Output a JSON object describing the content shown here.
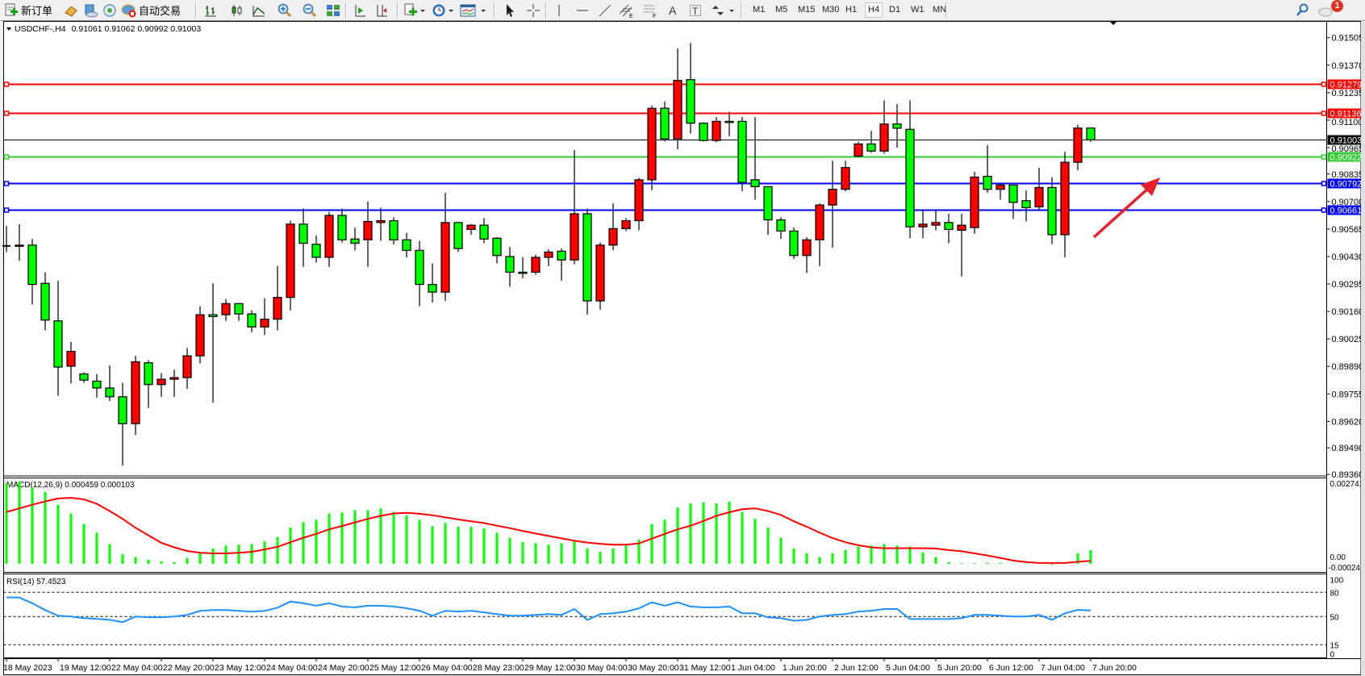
{
  "toolbar": {
    "new_order_label": "新订单",
    "auto_trade_label": "自动交易",
    "timeframes": [
      "M1",
      "M5",
      "M15",
      "M30",
      "H1",
      "H4",
      "D1",
      "W1",
      "MN"
    ],
    "active_timeframe": "H4",
    "notification_count": "1",
    "icons": [
      "new-order-icon",
      "market-watch-icon",
      "navigator-icon",
      "signals-icon",
      "auto-trading-icon",
      "bar-chart-icon",
      "candlestick-icon",
      "line-chart-icon",
      "zoom-in-icon",
      "zoom-out-icon",
      "tile-windows-icon",
      "autoscroll-icon",
      "chart-shift-icon",
      "indicators-icon",
      "periods-icon",
      "templates-icon",
      "cursor-icon",
      "crosshair-icon",
      "vertical-line-icon",
      "horizontal-line-icon",
      "trendline-icon",
      "equidistant-channel-icon",
      "fibonacci-icon",
      "text-icon",
      "text-label-icon",
      "arrows-icon",
      "search-icon",
      "chat-icon"
    ]
  },
  "chart": {
    "symbol_line": "USDCHF-,H4",
    "ohlc_line": "0.91061 0.91062 0.90992 0.91003",
    "macd_label": "MACD(12,26,9) 0.000459 0.000103",
    "rsi_label": "RSI(14) 57.4523"
  },
  "chart_data": {
    "type": "candlestick",
    "symbol": "USDCHF-",
    "timeframe": "H4",
    "colors": {
      "bull": "#ff0000",
      "bear": "#00ff00",
      "outline": "#000000"
    },
    "price_axis": {
      "ylim": [
        0.8936,
        0.91505
      ],
      "tick_labels": [
        "0.91505",
        "0.91370",
        "0.91235",
        "0.91100",
        "0.90965",
        "0.90835",
        "0.90700",
        "0.90565",
        "0.90430",
        "0.90295",
        "0.90160",
        "0.90025",
        "0.89890",
        "0.89755",
        "0.89620",
        "0.89490",
        "0.89360"
      ]
    },
    "time_labels": [
      "18 May 2023",
      "19 May 12:00",
      "22 May 04:00",
      "22 May 20:00",
      "23 May 12:00",
      "24 May 04:00",
      "24 May 20:00",
      "25 May 12:00",
      "26 May 04:00",
      "28 May 23:00",
      "29 May 12:00",
      "30 May 04:00",
      "30 May 20:00",
      "31 May 12:00",
      "1 Jun 04:00",
      "1 Jun 20:00",
      "2 Jun 12:00",
      "5 Jun 04:00",
      "5 Jun 20:00",
      "6 Jun 12:00",
      "7 Jun 04:00",
      "7 Jun 20:00"
    ],
    "ohlc": [
      [
        0.90482,
        0.9058,
        0.90452,
        0.90482
      ],
      [
        0.90482,
        0.90589,
        0.90409,
        0.90486
      ],
      [
        0.90486,
        0.90516,
        0.90195,
        0.90293
      ],
      [
        0.90298,
        0.90353,
        0.90067,
        0.90118
      ],
      [
        0.90114,
        0.90311,
        0.89746,
        0.89887
      ],
      [
        0.89891,
        0.90011,
        0.89806,
        0.89964
      ],
      [
        0.89853,
        0.89861,
        0.8981,
        0.89823
      ],
      [
        0.89818,
        0.89853,
        0.89737,
        0.89784
      ],
      [
        0.89784,
        0.89895,
        0.8972,
        0.89741
      ],
      [
        0.89741,
        0.8981,
        0.89403,
        0.89609
      ],
      [
        0.89609,
        0.89942,
        0.89553,
        0.89913
      ],
      [
        0.89908,
        0.89921,
        0.89686,
        0.89801
      ],
      [
        0.89801,
        0.89857,
        0.89741,
        0.89827
      ],
      [
        0.89827,
        0.89874,
        0.89741,
        0.89835
      ],
      [
        0.89835,
        0.89981,
        0.8978,
        0.89942
      ],
      [
        0.89942,
        0.90186,
        0.89904,
        0.90144
      ],
      [
        0.90144,
        0.90298,
        0.89711,
        0.90135
      ],
      [
        0.90144,
        0.90221,
        0.90114,
        0.90199
      ],
      [
        0.90199,
        0.90199,
        0.90114,
        0.90148
      ],
      [
        0.90148,
        0.90165,
        0.90058,
        0.90084
      ],
      [
        0.90084,
        0.90225,
        0.90045,
        0.90122
      ],
      [
        0.90122,
        0.90383,
        0.90067,
        0.90229
      ],
      [
        0.90229,
        0.90606,
        0.90165,
        0.90589
      ],
      [
        0.90589,
        0.90666,
        0.90379,
        0.90495
      ],
      [
        0.9049,
        0.90533,
        0.904,
        0.90426
      ],
      [
        0.90426,
        0.90649,
        0.90379,
        0.90632
      ],
      [
        0.90632,
        0.90666,
        0.90499,
        0.90512
      ],
      [
        0.90516,
        0.90572,
        0.9046,
        0.90495
      ],
      [
        0.90512,
        0.907,
        0.90379,
        0.90602
      ],
      [
        0.90597,
        0.9067,
        0.90507,
        0.90606
      ],
      [
        0.90606,
        0.90623,
        0.9049,
        0.90512
      ],
      [
        0.90512,
        0.90546,
        0.90426,
        0.9046
      ],
      [
        0.9046,
        0.90507,
        0.90186,
        0.90293
      ],
      [
        0.90293,
        0.90396,
        0.90204,
        0.90255
      ],
      [
        0.90255,
        0.90743,
        0.90212,
        0.90597
      ],
      [
        0.90597,
        0.90597,
        0.90452,
        0.90469
      ],
      [
        0.90563,
        0.90589,
        0.90537,
        0.90584
      ],
      [
        0.90584,
        0.90619,
        0.90495,
        0.90516
      ],
      [
        0.9052,
        0.90525,
        0.90396,
        0.90435
      ],
      [
        0.9043,
        0.90477,
        0.90281,
        0.90353
      ],
      [
        0.90353,
        0.90426,
        0.90323,
        0.90349
      ],
      [
        0.90353,
        0.90439,
        0.90341,
        0.90426
      ],
      [
        0.90426,
        0.90465,
        0.90383,
        0.90452
      ],
      [
        0.90456,
        0.90469,
        0.90311,
        0.90413
      ],
      [
        0.90413,
        0.90953,
        0.90392,
        0.9064
      ],
      [
        0.9064,
        0.90666,
        0.90144,
        0.90212
      ],
      [
        0.90212,
        0.90499,
        0.90169,
        0.90486
      ],
      [
        0.90486,
        0.90691,
        0.9046,
        0.90567
      ],
      [
        0.90567,
        0.90619,
        0.90555,
        0.90606
      ],
      [
        0.90606,
        0.90816,
        0.90559,
        0.90807
      ],
      [
        0.90807,
        0.91171,
        0.90756,
        0.91158
      ],
      [
        0.91158,
        0.91192,
        0.90995,
        0.91008
      ],
      [
        0.91008,
        0.91453,
        0.90957,
        0.91295
      ],
      [
        0.91299,
        0.91479,
        0.91034,
        0.91085
      ],
      [
        0.91085,
        0.9109,
        0.90995,
        0.91
      ],
      [
        0.91,
        0.91115,
        0.90991,
        0.91094
      ],
      [
        0.91094,
        0.91141,
        0.91021,
        0.9109
      ],
      [
        0.91094,
        0.91115,
        0.90751,
        0.90794
      ],
      [
        0.90807,
        0.91115,
        0.90709,
        0.90773
      ],
      [
        0.90773,
        0.90773,
        0.90537,
        0.9061
      ],
      [
        0.9061,
        0.90623,
        0.90516,
        0.90555
      ],
      [
        0.90555,
        0.90572,
        0.90418,
        0.90435
      ],
      [
        0.90435,
        0.90525,
        0.90349,
        0.90512
      ],
      [
        0.90512,
        0.90691,
        0.90383,
        0.90683
      ],
      [
        0.90683,
        0.90901,
        0.90473,
        0.9076
      ],
      [
        0.9076,
        0.90901,
        0.90751,
        0.90867
      ],
      [
        0.90923,
        0.90995,
        0.90918,
        0.90983
      ],
      [
        0.90983,
        0.91047,
        0.9094,
        0.90948
      ],
      [
        0.90948,
        0.91197,
        0.90935,
        0.91081
      ],
      [
        0.91081,
        0.91179,
        0.90965,
        0.9106
      ],
      [
        0.91055,
        0.91197,
        0.9052,
        0.90576
      ],
      [
        0.90576,
        0.90662,
        0.9052,
        0.90589
      ],
      [
        0.90584,
        0.90657,
        0.90559,
        0.90597
      ],
      [
        0.90597,
        0.9064,
        0.90495,
        0.90563
      ],
      [
        0.90559,
        0.9064,
        0.90332,
        0.90584
      ],
      [
        0.90572,
        0.90846,
        0.90542,
        0.9082
      ],
      [
        0.90824,
        0.90978,
        0.90743,
        0.9076
      ],
      [
        0.9076,
        0.9079,
        0.90709,
        0.90781
      ],
      [
        0.90781,
        0.90781,
        0.90614,
        0.90696
      ],
      [
        0.90704,
        0.90756,
        0.90602,
        0.9067
      ],
      [
        0.90674,
        0.90867,
        0.90657,
        0.90769
      ],
      [
        0.90769,
        0.9082,
        0.9049,
        0.90537
      ],
      [
        0.90537,
        0.90944,
        0.90426,
        0.90893
      ],
      [
        0.90893,
        0.91077,
        0.90854,
        0.91061
      ],
      [
        0.91061,
        0.91062,
        0.90992,
        0.91003
      ]
    ],
    "current_price": {
      "value": 0.91003,
      "label": "0.91003",
      "color": "#000000"
    },
    "horizontal_lines": [
      {
        "value": 0.91279,
        "label": "0.91279",
        "color": "#ff0000"
      },
      {
        "value": 0.91136,
        "label": "0.91136",
        "color": "#ff0000"
      },
      {
        "value": 0.90922,
        "label": "0.90922",
        "color": "#32cd32"
      },
      {
        "value": 0.90792,
        "label": "0.90792",
        "color": "#0000ff"
      },
      {
        "value": 0.90661,
        "label": "0.90661",
        "color": "#0000ff"
      }
    ],
    "annotation_arrow": {
      "color": "#e8202a",
      "direction": "up-right"
    },
    "macd": {
      "params": "12,26,9",
      "ylim": [
        -0.000247,
        0.002741
      ],
      "tick_labels": [
        "0.002741",
        "0.00",
        "-0.000247"
      ],
      "histogram_color": "#00ff00",
      "signal_color": "#ff0000",
      "histogram": [
        0.00269,
        0.00274,
        0.00254,
        0.0024,
        0.00197,
        0.00168,
        0.00133,
        0.00104,
        0.00066,
        0.00032,
        0.00023,
        0.00014,
        9e-05,
        6e-05,
        0.0002,
        0.00035,
        0.00052,
        0.00061,
        0.00064,
        0.00066,
        0.00075,
        0.0009,
        0.00121,
        0.00139,
        0.00147,
        0.00168,
        0.00171,
        0.00179,
        0.00179,
        0.00185,
        0.00173,
        0.00162,
        0.00147,
        0.00127,
        0.00136,
        0.00124,
        0.00124,
        0.00118,
        0.00104,
        0.00087,
        0.00072,
        0.00069,
        0.00064,
        0.00069,
        0.00075,
        0.00052,
        0.0004,
        0.00052,
        0.00061,
        0.00081,
        0.00133,
        0.00147,
        0.00188,
        0.00202,
        0.00205,
        0.00202,
        0.00208,
        0.00173,
        0.0015,
        0.00121,
        0.00087,
        0.00052,
        0.00035,
        0.00023,
        0.00035,
        0.00046,
        0.00058,
        0.00061,
        0.00066,
        0.00061,
        0.00058,
        0.00038,
        0.00023,
        6e-05,
        2e-05,
        2e-05,
        3e-05,
        3e-05,
        1e-05,
        1e-05,
        1e-05,
        -3e-05,
        5e-05,
        0.00035,
        0.000459
      ],
      "signal": [
        0.00173,
        0.00185,
        0.00197,
        0.00208,
        0.00218,
        0.0022,
        0.00215,
        0.002,
        0.00176,
        0.0015,
        0.0012,
        0.00095,
        0.0007,
        0.00055,
        0.00043,
        0.00037,
        0.00035,
        0.00035,
        0.00037,
        0.0004,
        0.00048,
        0.00057,
        0.00072,
        0.00087,
        0.001,
        0.00115,
        0.00126,
        0.00138,
        0.0015,
        0.0016,
        0.00168,
        0.0017,
        0.00167,
        0.00162,
        0.00155,
        0.00148,
        0.00142,
        0.00136,
        0.00127,
        0.00119,
        0.0011,
        0.00101,
        0.00093,
        0.00085,
        0.00077,
        0.00071,
        0.00067,
        0.00064,
        0.00064,
        0.00068,
        0.00084,
        0.001,
        0.00115,
        0.00127,
        0.00143,
        0.0016,
        0.00172,
        0.00182,
        0.00185,
        0.00176,
        0.00163,
        0.00142,
        0.00124,
        0.00104,
        0.00086,
        0.00072,
        0.00062,
        0.00055,
        0.00052,
        0.00052,
        0.00052,
        0.00052,
        0.00051,
        0.00046,
        0.00042,
        0.00035,
        0.00028,
        0.0002,
        0.00011,
        6e-05,
        3e-05,
        3e-05,
        3e-05,
        7e-05,
        0.000103
      ]
    },
    "rsi": {
      "period": 14,
      "ylim": [
        0,
        100
      ],
      "tick_labels": [
        "100",
        "80",
        "50",
        "15",
        "0"
      ],
      "levels": [
        80,
        50,
        15
      ],
      "color": "#1e90ff",
      "values": [
        73.8,
        73.5,
        66.5,
        58,
        51,
        50,
        48,
        47,
        46,
        43,
        50,
        49,
        49,
        50,
        52,
        57,
        58,
        58,
        57,
        56,
        57,
        61,
        68.6,
        66.5,
        63.4,
        66.5,
        62.4,
        61.4,
        63.4,
        63.4,
        62.4,
        60.3,
        57.2,
        51,
        57.2,
        56.2,
        57.2,
        55.2,
        53.1,
        51,
        51,
        52,
        53,
        52,
        59.3,
        45.9,
        53,
        54,
        56,
        60.3,
        67.6,
        63.4,
        67.6,
        62.4,
        61.4,
        61.4,
        62.4,
        54,
        54,
        49,
        48,
        44.8,
        45.9,
        50,
        52,
        53,
        56.2,
        57.2,
        59.3,
        59.3,
        46.9,
        46.9,
        46.9,
        46.9,
        48,
        52,
        52,
        51,
        50,
        50,
        52,
        46,
        54,
        58.3,
        57.45
      ]
    }
  }
}
